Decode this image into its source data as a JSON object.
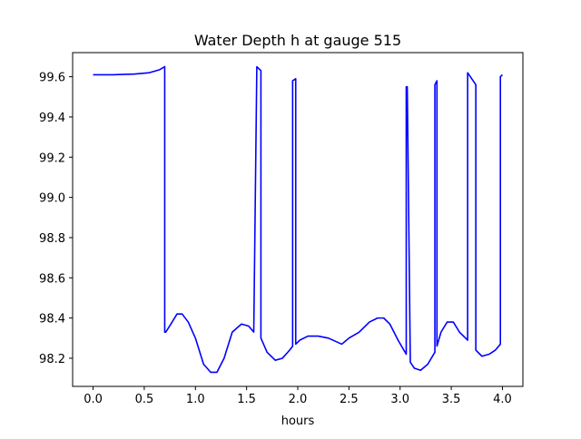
{
  "chart_data": {
    "type": "line",
    "title": "Water Depth h at gauge 515",
    "xlabel": "hours",
    "ylabel": "",
    "xlim": [
      -0.2,
      4.2
    ],
    "ylim": [
      98.06,
      99.72
    ],
    "xticks": [
      0.0,
      0.5,
      1.0,
      1.5,
      2.0,
      2.5,
      3.0,
      3.5,
      4.0
    ],
    "xtick_labels": [
      "0.0",
      "0.5",
      "1.0",
      "1.5",
      "2.0",
      "2.5",
      "3.0",
      "3.5",
      "4.0"
    ],
    "yticks": [
      98.2,
      98.4,
      98.6,
      98.8,
      99.0,
      99.2,
      99.4,
      99.6
    ],
    "ytick_labels": [
      "98.2",
      "98.4",
      "98.6",
      "98.8",
      "99.0",
      "99.2",
      "99.4",
      "99.6"
    ],
    "grid": false,
    "series": [
      {
        "color": "#0000ff",
        "x": [
          0.0,
          0.2,
          0.4,
          0.55,
          0.65,
          0.7,
          0.7,
          0.71,
          0.76,
          0.82,
          0.87,
          0.93,
          1.0,
          1.08,
          1.15,
          1.21,
          1.28,
          1.36,
          1.45,
          1.52,
          1.57,
          1.6,
          1.6,
          1.64,
          1.64,
          1.7,
          1.78,
          1.85,
          1.92,
          1.95,
          1.95,
          1.98,
          1.98,
          2.02,
          2.1,
          2.2,
          2.3,
          2.43,
          2.5,
          2.6,
          2.7,
          2.78,
          2.84,
          2.9,
          2.98,
          3.06,
          3.06,
          3.07,
          3.1,
          3.14,
          3.2,
          3.27,
          3.34,
          3.34,
          3.36,
          3.36,
          3.4,
          3.46,
          3.52,
          3.58,
          3.64,
          3.66,
          3.66,
          3.74,
          3.74,
          3.8,
          3.87,
          3.93,
          3.98,
          3.98,
          4.0
        ],
        "y": [
          99.61,
          99.61,
          99.613,
          99.62,
          99.635,
          99.65,
          98.33,
          98.33,
          98.37,
          98.42,
          98.42,
          98.38,
          98.3,
          98.17,
          98.13,
          98.13,
          98.2,
          98.33,
          98.37,
          98.36,
          98.33,
          99.65,
          99.65,
          99.63,
          98.3,
          98.23,
          98.19,
          98.2,
          98.24,
          98.26,
          99.58,
          99.59,
          98.27,
          98.29,
          98.31,
          98.31,
          98.3,
          98.27,
          98.3,
          98.33,
          98.38,
          98.4,
          98.4,
          98.37,
          98.29,
          98.22,
          99.55,
          99.55,
          98.18,
          98.15,
          98.14,
          98.17,
          98.23,
          99.56,
          99.58,
          98.26,
          98.33,
          98.38,
          98.38,
          98.33,
          98.3,
          98.29,
          99.62,
          99.56,
          98.24,
          98.21,
          98.22,
          98.24,
          98.27,
          99.6,
          99.61
        ]
      }
    ]
  }
}
